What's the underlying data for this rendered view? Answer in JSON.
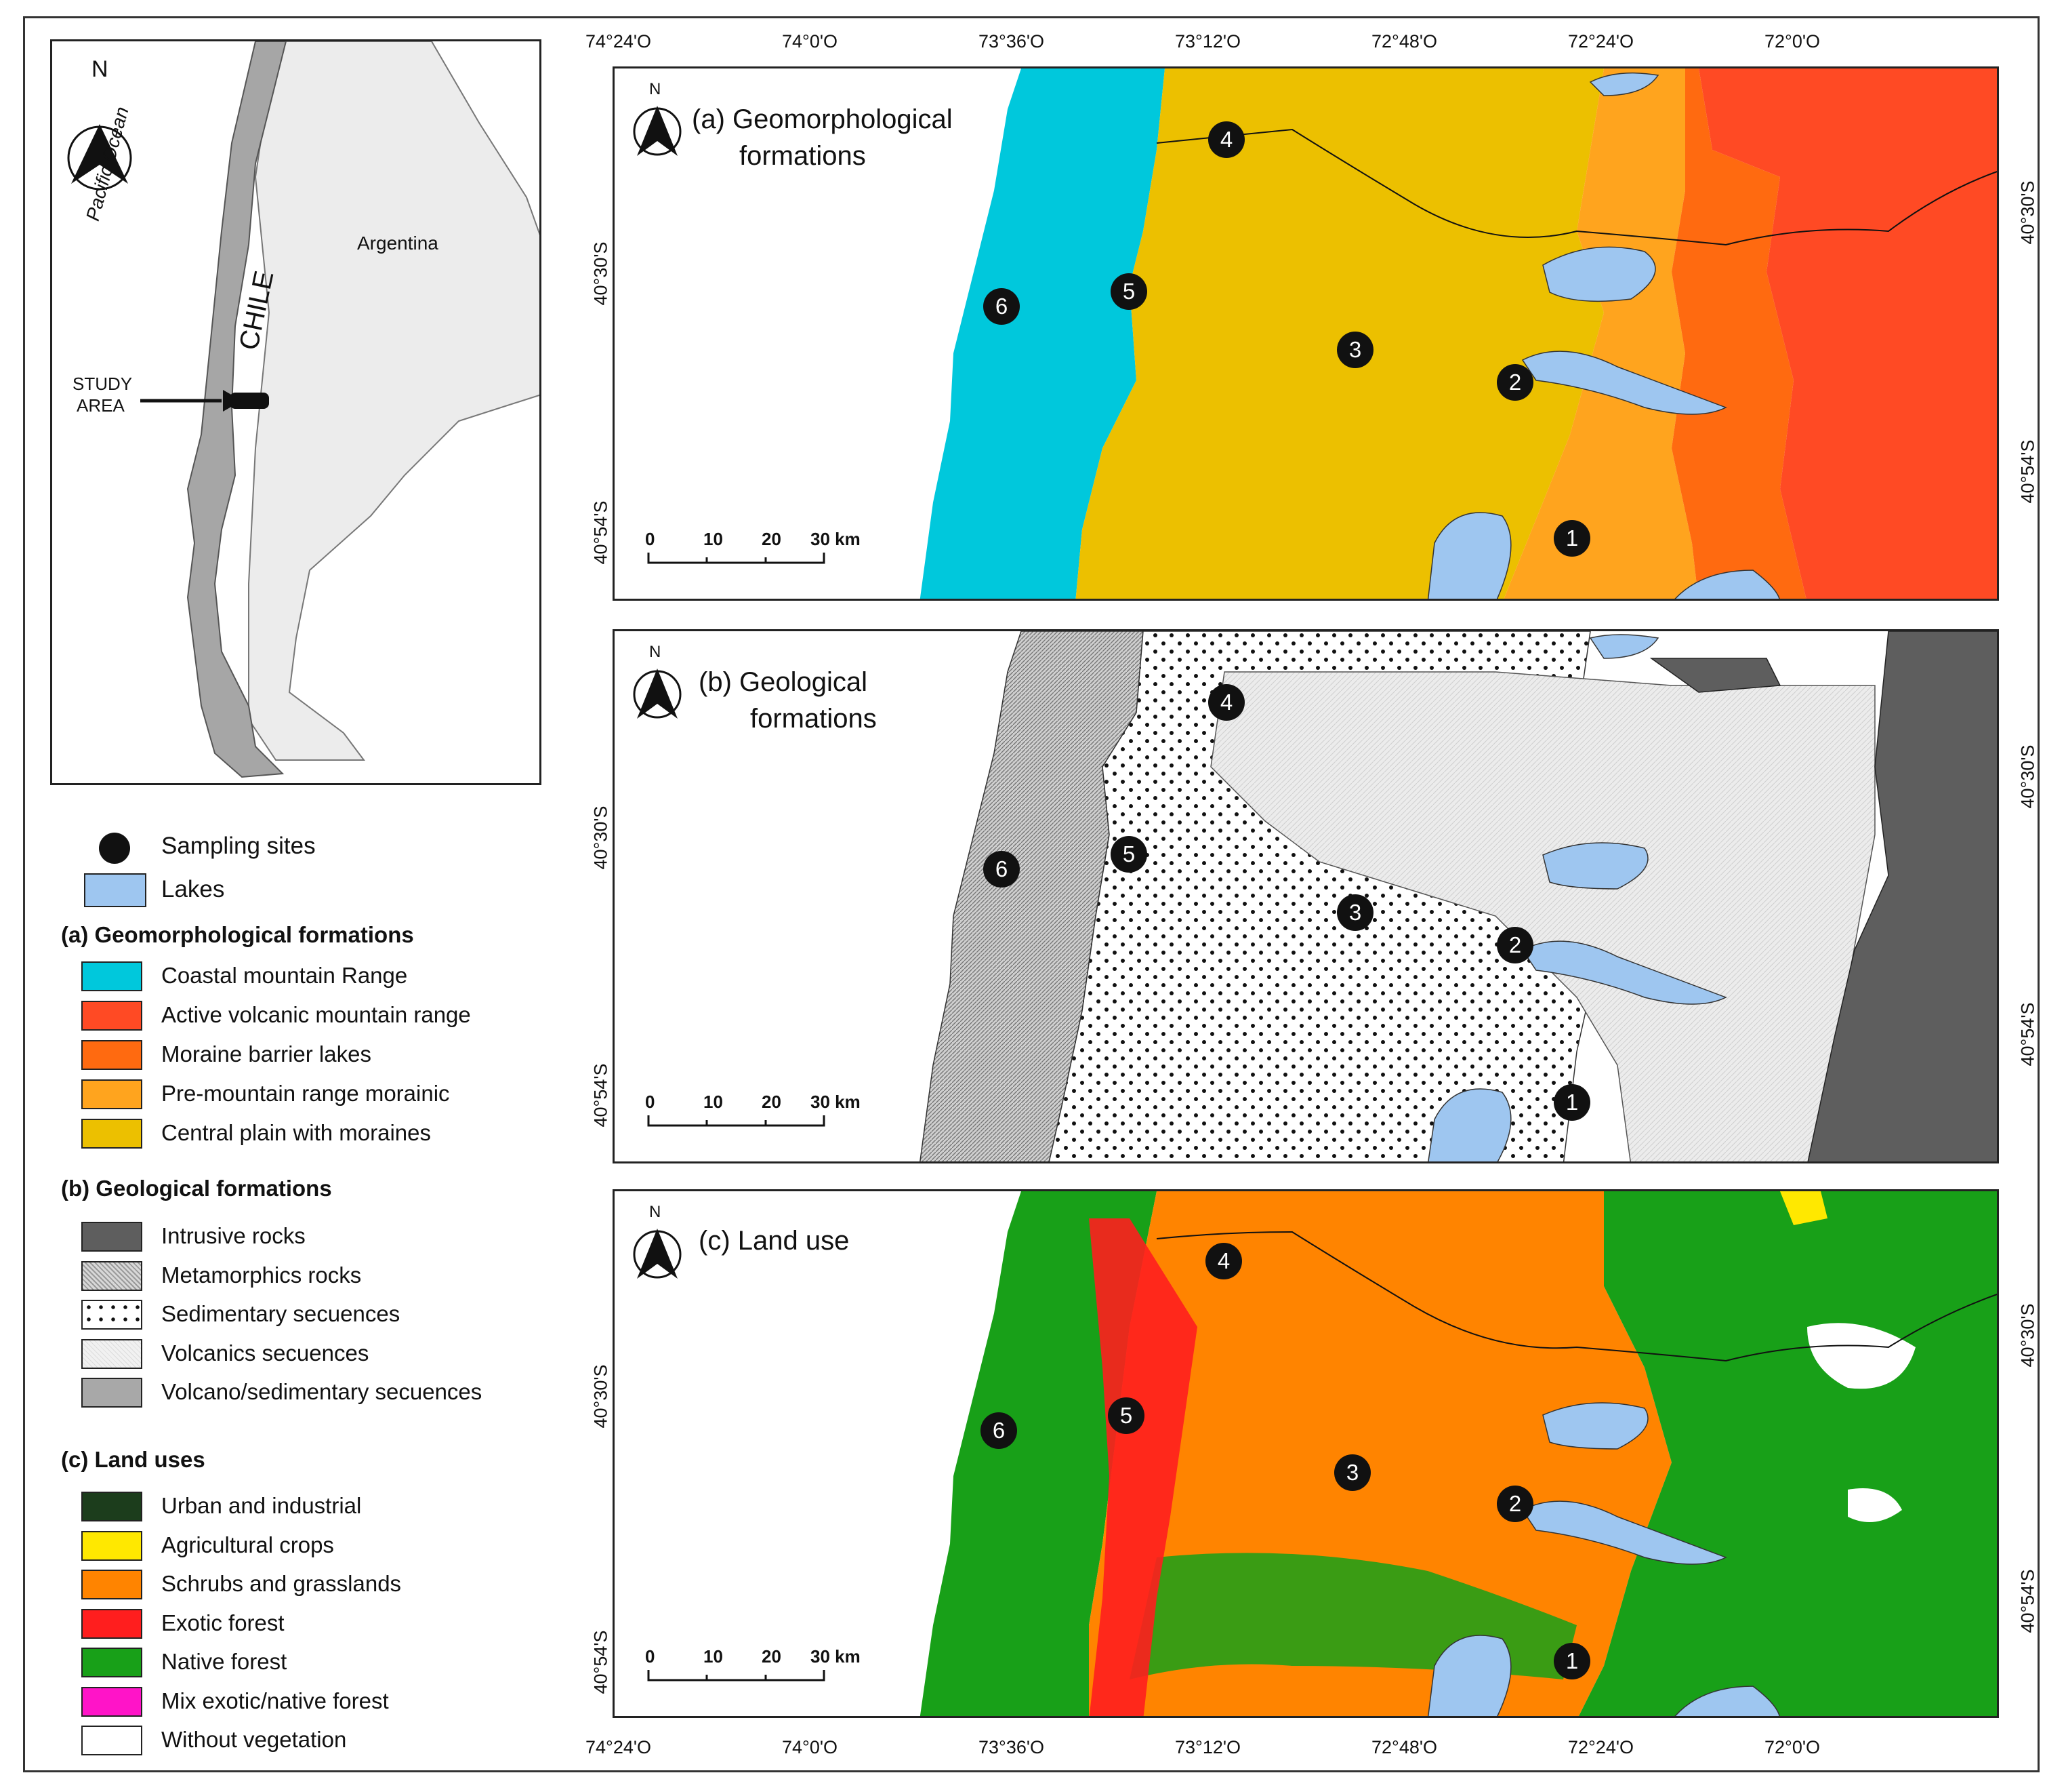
{
  "inset": {
    "north": "N",
    "ocean": "Pacific Ocean",
    "country_chile": "CHILE",
    "country_argentina": "Argentina",
    "study_area": [
      "STUDY",
      "AREA"
    ]
  },
  "panels": {
    "a": {
      "title": [
        "(a)  Geomorphological",
        "formations"
      ]
    },
    "b": {
      "title": [
        "(b)  Geological",
        "formations"
      ]
    },
    "c": {
      "title": [
        "(c)  Land use"
      ]
    }
  },
  "north": "N",
  "top_longitudes": [
    "74°24'O",
    "74°0'O",
    "73°36'O",
    "73°12'O",
    "72°48'O",
    "72°24'O",
    "72°0'O"
  ],
  "bottom_longitudes": [
    "74°24'O",
    "74°0'O",
    "73°36'O",
    "73°12'O",
    "72°48'O",
    "72°24'O",
    "72°0'O"
  ],
  "latitudes": [
    "40°30'S",
    "40°54'S"
  ],
  "scale_bar": {
    "ticks": [
      "0",
      "10",
      "20"
    ],
    "end": "30 km"
  },
  "sites": [
    "1",
    "2",
    "3",
    "4",
    "5",
    "6"
  ],
  "legend": {
    "sampling_sites": "Sampling sites",
    "lakes": "Lakes",
    "geomorph": {
      "heading": "(a) Geomorphological formations",
      "items": [
        {
          "label": "Coastal mountain Range",
          "color": "#00c8dc"
        },
        {
          "label": "Active volcanic mountain range",
          "color": "#ff4a24"
        },
        {
          "label": "Moraine barrier lakes",
          "color": "#ff6a10"
        },
        {
          "label": "Pre-mountain range morainic",
          "color": "#ffa41e"
        },
        {
          "label": "Central plain with moraines",
          "color": "#ecc000"
        }
      ]
    },
    "geology": {
      "heading": "(b) Geological formations",
      "items": [
        {
          "label": "Intrusive rocks",
          "pattern": "intrusive"
        },
        {
          "label": "Metamorphics rocks",
          "pattern": "metamorphic"
        },
        {
          "label": "Sedimentary secuences",
          "pattern": "sedimentary"
        },
        {
          "label": "Volcanics secuences",
          "pattern": "volcanic"
        },
        {
          "label": "Volcano/sedimentary secuences",
          "pattern": "volcsed"
        }
      ]
    },
    "landuse": {
      "heading": "(c) Land uses",
      "items": [
        {
          "label": "Urban and industrial",
          "color": "#1c3d1c"
        },
        {
          "label": "Agricultural crops",
          "color": "#ffe800"
        },
        {
          "label": "Schrubs and grasslands",
          "color": "#ff8400"
        },
        {
          "label": "Exotic forest",
          "color": "#ff1e1e"
        },
        {
          "label": "Native forest",
          "color": "#18a018"
        },
        {
          "label": "Mix exotic/native forest",
          "color": "#ff14c8"
        },
        {
          "label": "Without vegetation",
          "color": "#ffffff"
        }
      ]
    }
  },
  "colors": {
    "lake": "#9ec6f0",
    "chile": "#a6a6a6",
    "argentina": "#ececec"
  }
}
